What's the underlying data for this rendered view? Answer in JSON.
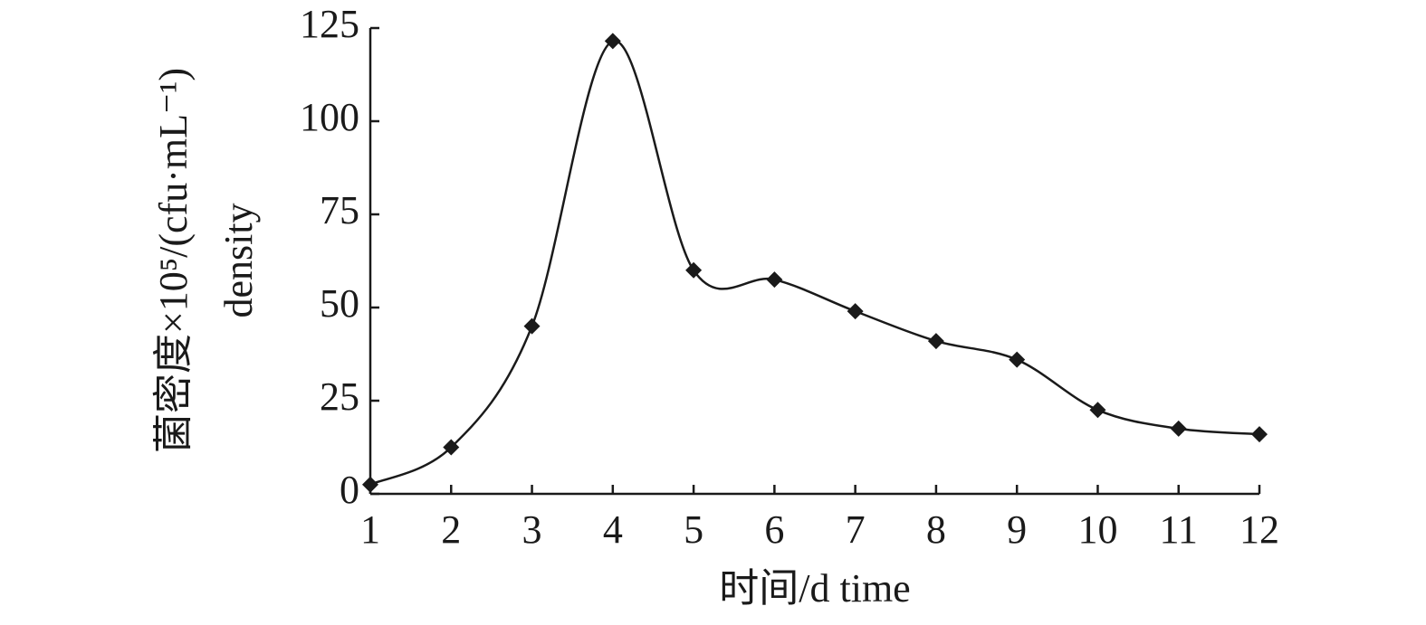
{
  "chart_data": {
    "type": "line",
    "x_label": "时间/d time",
    "y_label": [
      "菌密度×10⁵/(cfu·mL⁻¹)",
      "density"
    ],
    "x": [
      1,
      2,
      3,
      4,
      5,
      6,
      7,
      8,
      9,
      10,
      11,
      12
    ],
    "series": [
      {
        "color": "#1a1a1a",
        "marker": "diamond",
        "values": [
          2.5,
          12.5,
          45,
          121.5,
          60,
          57.5,
          49,
          41,
          36,
          22.5,
          17.5,
          16
        ]
      }
    ],
    "xlim": [
      1,
      12
    ],
    "xticks": [
      1,
      2,
      3,
      4,
      5,
      6,
      7,
      8,
      9,
      10,
      11,
      12
    ],
    "ylim": [
      0,
      125
    ],
    "yticks": [
      0,
      25,
      50,
      75,
      100,
      125
    ],
    "grid": false,
    "smooth": true
  }
}
